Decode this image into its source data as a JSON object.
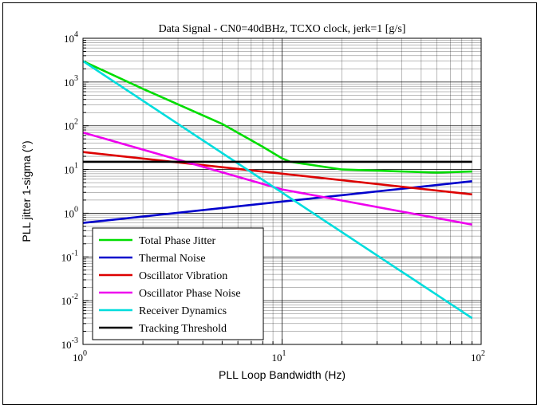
{
  "chart_data": {
    "type": "line",
    "title": "Data Signal - CN0=40dBHz, TCXO clock, jerk=1 [g/s]",
    "xlabel": "PLL Loop Bandwidth (Hz)",
    "ylabel": "PLL jitter 1-sigma (°)",
    "x_scale": "log",
    "y_scale": "log",
    "xlim": [
      1,
      100
    ],
    "ylim": [
      0.001,
      10000
    ],
    "grid": true,
    "legend_position": "bottom-left",
    "x_tick_labels": [
      {
        "base": "10",
        "exp": "0"
      },
      {
        "base": "10",
        "exp": "1"
      },
      {
        "base": "10",
        "exp": "2"
      }
    ],
    "y_tick_labels": [
      {
        "base": "10",
        "exp": "-3"
      },
      {
        "base": "10",
        "exp": "-2"
      },
      {
        "base": "10",
        "exp": "-1"
      },
      {
        "base": "10",
        "exp": "0"
      },
      {
        "base": "10",
        "exp": "1"
      },
      {
        "base": "10",
        "exp": "2"
      },
      {
        "base": "10",
        "exp": "3"
      },
      {
        "base": "10",
        "exp": "4"
      }
    ],
    "series": [
      {
        "name": "Total Phase Jitter",
        "color": "#00dd00",
        "x": [
          1,
          2,
          5,
          8,
          10,
          11,
          20,
          40,
          60,
          90
        ],
        "y": [
          3000,
          700,
          110,
          33,
          18,
          15,
          10,
          9,
          8.5,
          9
        ]
      },
      {
        "name": "Thermal Noise",
        "color": "#0000cc",
        "x": [
          1,
          90
        ],
        "y": [
          0.6,
          5.4
        ]
      },
      {
        "name": "Oscillator Vibration",
        "color": "#dd0000",
        "x": [
          1,
          90
        ],
        "y": [
          25,
          2.7
        ]
      },
      {
        "name": "Oscillator Phase Noise",
        "color": "#ee00ee",
        "x": [
          1,
          10,
          90
        ],
        "y": [
          70,
          3.5,
          0.55
        ]
      },
      {
        "name": "Receiver Dynamics",
        "color": "#00dddd",
        "x": [
          1,
          90
        ],
        "y": [
          3000,
          0.004
        ]
      },
      {
        "name": "Tracking Threshold",
        "color": "#000000",
        "x": [
          1,
          90
        ],
        "y": [
          15,
          15
        ]
      }
    ]
  }
}
